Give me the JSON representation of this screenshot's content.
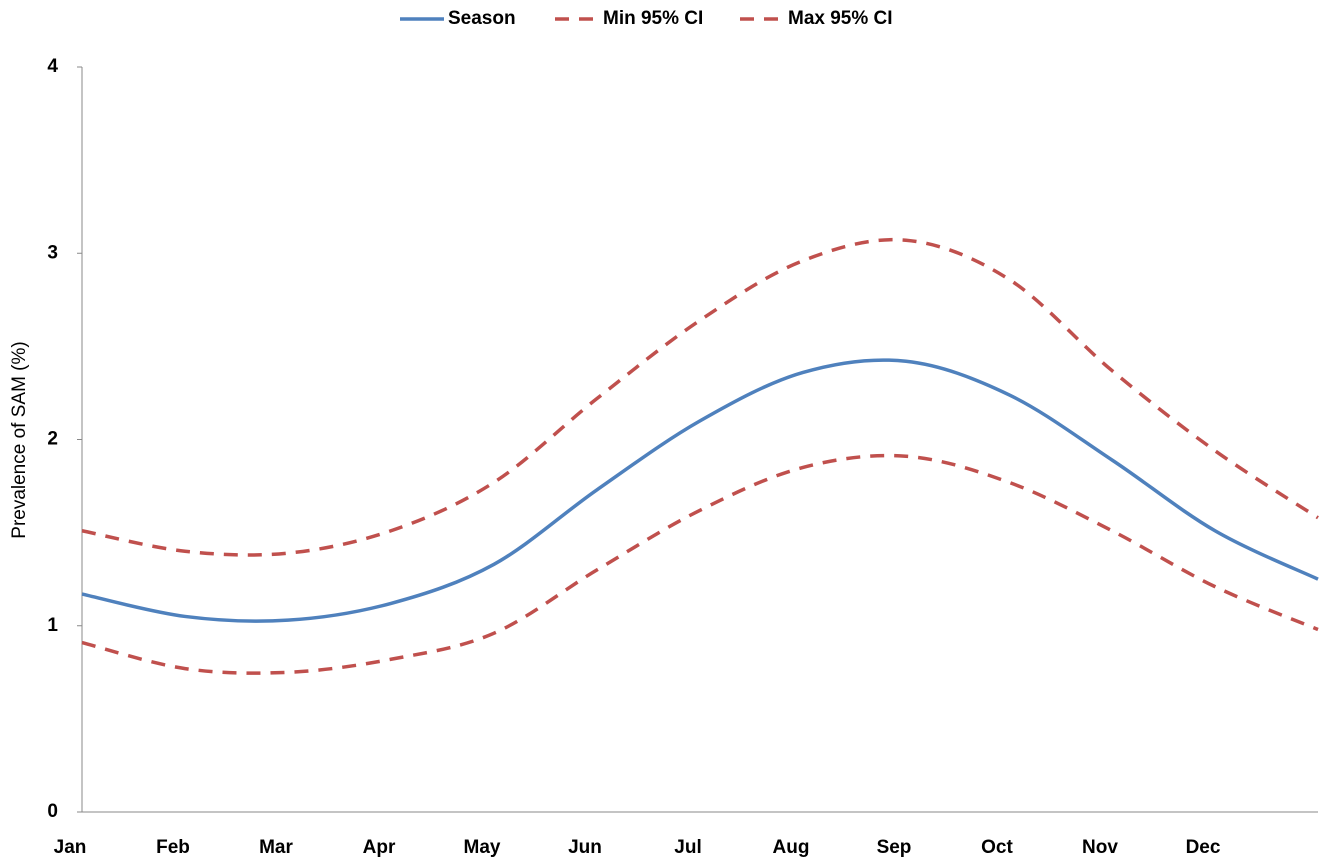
{
  "chart_data": {
    "type": "line",
    "y_label": "Prevalence of SAM (%)",
    "categories": [
      "Jan",
      "Feb",
      "Mar",
      "Apr",
      "May",
      "Jun",
      "Jul",
      "Aug",
      "Sep",
      "Oct",
      "Nov",
      "Dec",
      null
    ],
    "series": [
      {
        "name": "Season",
        "color": "#4f81bd",
        "dashed": false,
        "values": [
          1.17,
          1.05,
          1.03,
          1.12,
          1.33,
          1.73,
          2.1,
          2.36,
          2.42,
          2.24,
          1.89,
          1.51,
          1.25
        ]
      },
      {
        "name": "Min 95% CI",
        "color": "#c0504d",
        "dashed": true,
        "values": [
          0.91,
          0.77,
          0.75,
          0.82,
          0.96,
          1.3,
          1.62,
          1.85,
          1.91,
          1.77,
          1.51,
          1.21,
          0.98
        ]
      },
      {
        "name": "Max 95% CI",
        "color": "#c0504d",
        "dashed": true,
        "values": [
          1.51,
          1.4,
          1.39,
          1.51,
          1.77,
          2.22,
          2.64,
          2.96,
          3.07,
          2.86,
          2.37,
          1.94,
          1.58
        ]
      }
    ],
    "ylim": [
      0,
      4
    ],
    "yticks": [
      0,
      1,
      2,
      3,
      4
    ],
    "grid": false,
    "legend": "top"
  }
}
